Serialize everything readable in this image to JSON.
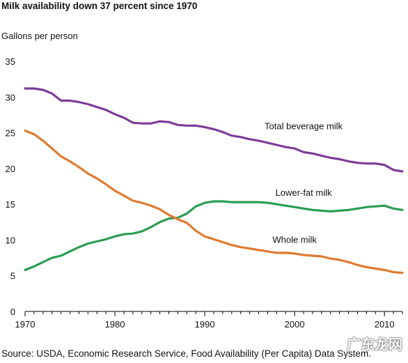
{
  "title": "Milk availability down 37 percent since 1970",
  "source": "Source: USDA, Economic Research Service, Food Availability (Per Capita) Data System.",
  "watermark": "广东龙网",
  "chart_data": {
    "type": "line",
    "title": "Milk availability down 37 percent since 1970",
    "ylabel": "Gallons per person",
    "xlabel": "",
    "xlim": [
      1970,
      2012
    ],
    "ylim": [
      0,
      35
    ],
    "x_ticks": [
      1970,
      1980,
      1990,
      2000,
      2010
    ],
    "y_ticks": [
      0,
      5,
      10,
      15,
      20,
      25,
      30,
      35
    ],
    "grid": false,
    "x": [
      1970,
      1971,
      1972,
      1973,
      1974,
      1975,
      1976,
      1977,
      1978,
      1979,
      1980,
      1981,
      1982,
      1983,
      1984,
      1985,
      1986,
      1987,
      1988,
      1989,
      1990,
      1991,
      1992,
      1993,
      1994,
      1995,
      1996,
      1997,
      1998,
      1999,
      2000,
      2001,
      2002,
      2003,
      2004,
      2005,
      2006,
      2007,
      2008,
      2009,
      2010,
      2011,
      2012
    ],
    "series": [
      {
        "name": "Total beverage milk",
        "color": "#7d3c98",
        "values": [
          31.2,
          31.2,
          31.0,
          30.5,
          29.5,
          29.5,
          29.3,
          29.0,
          28.6,
          28.2,
          27.6,
          27.1,
          26.4,
          26.3,
          26.3,
          26.6,
          26.5,
          26.1,
          26.0,
          26.0,
          25.8,
          25.5,
          25.1,
          24.6,
          24.4,
          24.1,
          23.9,
          23.6,
          23.3,
          23.0,
          22.8,
          22.3,
          22.1,
          21.8,
          21.5,
          21.3,
          21.0,
          20.8,
          20.7,
          20.7,
          20.5,
          19.8,
          19.6
        ]
      },
      {
        "name": "Lower-fat milk",
        "color": "#2a9d52",
        "values": [
          5.8,
          6.3,
          6.9,
          7.5,
          7.8,
          8.4,
          9.0,
          9.5,
          9.8,
          10.1,
          10.5,
          10.8,
          10.9,
          11.2,
          11.8,
          12.5,
          13.0,
          13.1,
          13.7,
          14.7,
          15.2,
          15.4,
          15.4,
          15.3,
          15.3,
          15.3,
          15.3,
          15.2,
          15.0,
          14.8,
          14.6,
          14.4,
          14.2,
          14.1,
          14.0,
          14.1,
          14.2,
          14.4,
          14.6,
          14.7,
          14.8,
          14.4,
          14.2
        ]
      },
      {
        "name": "Whole milk",
        "color": "#e07a30",
        "values": [
          25.3,
          24.8,
          23.9,
          22.8,
          21.7,
          21.0,
          20.2,
          19.3,
          18.6,
          17.8,
          16.9,
          16.2,
          15.5,
          15.2,
          14.8,
          14.3,
          13.5,
          12.9,
          12.4,
          11.3,
          10.5,
          10.1,
          9.7,
          9.3,
          9.0,
          8.8,
          8.6,
          8.4,
          8.2,
          8.2,
          8.1,
          7.9,
          7.8,
          7.7,
          7.4,
          7.2,
          6.9,
          6.5,
          6.2,
          6.0,
          5.8,
          5.5,
          5.4
        ]
      }
    ],
    "annotations": [
      {
        "text": "Total beverage milk",
        "series": 0,
        "x": 2001,
        "y": 25.5
      },
      {
        "text": "Lower-fat milk",
        "series": 1,
        "x": 2001,
        "y": 16.2
      },
      {
        "text": "Whole milk",
        "series": 2,
        "x": 2000,
        "y": 9.6
      }
    ]
  }
}
